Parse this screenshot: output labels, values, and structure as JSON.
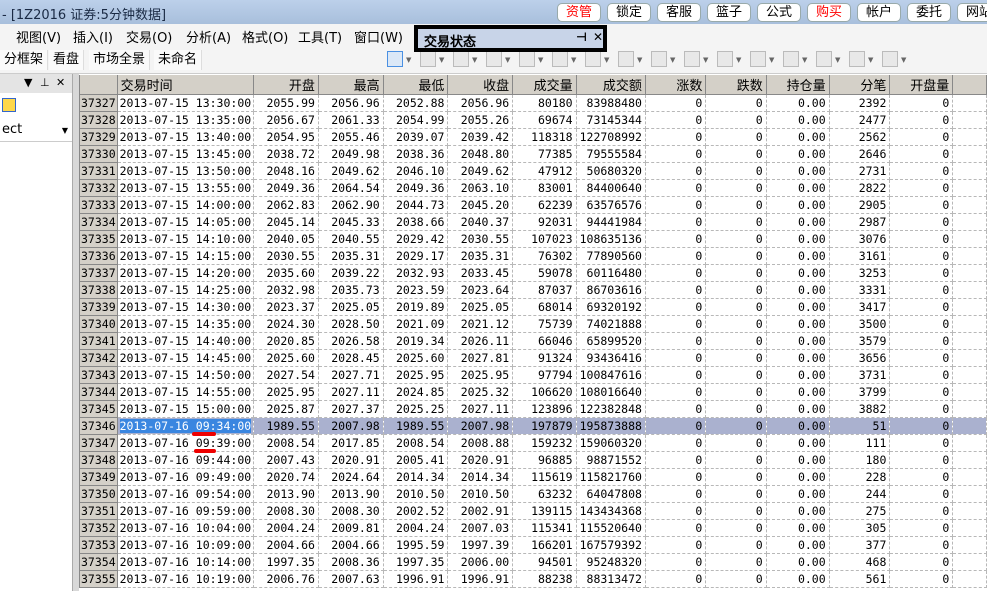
{
  "window": {
    "title": "- [1Z2016 证券:5分钟数据]"
  },
  "top_buttons": [
    {
      "label": "资管",
      "color": "#ff0000"
    },
    {
      "label": "锁定"
    },
    {
      "label": "客服"
    },
    {
      "label": "篮子"
    },
    {
      "label": "公式"
    },
    {
      "label": "购买",
      "color": "#ff0000"
    },
    {
      "label": "帐户"
    },
    {
      "label": "委托"
    },
    {
      "label": "网站"
    }
  ],
  "menu": [
    "视图(V)",
    "插入(I)",
    "交易(O)",
    "分析(A)",
    "格式(O)",
    "工具(T)",
    "窗口(W)"
  ],
  "tabs": [
    "分框架",
    "看盘",
    "市场全景",
    "未命名"
  ],
  "float_window": {
    "title": "交易状态"
  },
  "left_panel": {
    "select_value": "ect"
  },
  "table": {
    "headers": [
      "",
      "交易时间",
      "开盘",
      "最高",
      "最低",
      "收盘",
      "成交量",
      "成交额",
      "涨数",
      "跌数",
      "持仓量",
      "分笔",
      "开盘量"
    ],
    "selected_index": 19,
    "rows": [
      [
        "37327",
        "2013-07-15 13:30:00",
        "2055.99",
        "2056.96",
        "2052.88",
        "2056.96",
        "80180",
        "83988480",
        "0",
        "0",
        "0.00",
        "2392",
        "0"
      ],
      [
        "37328",
        "2013-07-15 13:35:00",
        "2056.67",
        "2061.33",
        "2054.99",
        "2055.26",
        "69674",
        "73145344",
        "0",
        "0",
        "0.00",
        "2477",
        "0"
      ],
      [
        "37329",
        "2013-07-15 13:40:00",
        "2054.95",
        "2055.46",
        "2039.07",
        "2039.42",
        "118318",
        "122708992",
        "0",
        "0",
        "0.00",
        "2562",
        "0"
      ],
      [
        "37330",
        "2013-07-15 13:45:00",
        "2038.72",
        "2049.98",
        "2038.36",
        "2048.80",
        "77385",
        "79555584",
        "0",
        "0",
        "0.00",
        "2646",
        "0"
      ],
      [
        "37331",
        "2013-07-15 13:50:00",
        "2048.16",
        "2049.62",
        "2046.10",
        "2049.62",
        "47912",
        "50680320",
        "0",
        "0",
        "0.00",
        "2731",
        "0"
      ],
      [
        "37332",
        "2013-07-15 13:55:00",
        "2049.36",
        "2064.54",
        "2049.36",
        "2063.10",
        "83001",
        "84400640",
        "0",
        "0",
        "0.00",
        "2822",
        "0"
      ],
      [
        "37333",
        "2013-07-15 14:00:00",
        "2062.83",
        "2062.90",
        "2044.73",
        "2045.20",
        "62239",
        "63576576",
        "0",
        "0",
        "0.00",
        "2905",
        "0"
      ],
      [
        "37334",
        "2013-07-15 14:05:00",
        "2045.14",
        "2045.33",
        "2038.66",
        "2040.37",
        "92031",
        "94441984",
        "0",
        "0",
        "0.00",
        "2987",
        "0"
      ],
      [
        "37335",
        "2013-07-15 14:10:00",
        "2040.05",
        "2040.55",
        "2029.42",
        "2030.55",
        "107023",
        "108635136",
        "0",
        "0",
        "0.00",
        "3076",
        "0"
      ],
      [
        "37336",
        "2013-07-15 14:15:00",
        "2030.55",
        "2035.31",
        "2029.17",
        "2035.31",
        "76302",
        "77890560",
        "0",
        "0",
        "0.00",
        "3161",
        "0"
      ],
      [
        "37337",
        "2013-07-15 14:20:00",
        "2035.60",
        "2039.22",
        "2032.93",
        "2033.45",
        "59078",
        "60116480",
        "0",
        "0",
        "0.00",
        "3253",
        "0"
      ],
      [
        "37338",
        "2013-07-15 14:25:00",
        "2032.98",
        "2035.73",
        "2023.59",
        "2023.64",
        "87037",
        "86703616",
        "0",
        "0",
        "0.00",
        "3331",
        "0"
      ],
      [
        "37339",
        "2013-07-15 14:30:00",
        "2023.37",
        "2025.05",
        "2019.89",
        "2025.05",
        "68014",
        "69320192",
        "0",
        "0",
        "0.00",
        "3417",
        "0"
      ],
      [
        "37340",
        "2013-07-15 14:35:00",
        "2024.30",
        "2028.50",
        "2021.09",
        "2021.12",
        "75739",
        "74021888",
        "0",
        "0",
        "0.00",
        "3500",
        "0"
      ],
      [
        "37341",
        "2013-07-15 14:40:00",
        "2020.85",
        "2026.58",
        "2019.34",
        "2026.11",
        "66046",
        "65899520",
        "0",
        "0",
        "0.00",
        "3579",
        "0"
      ],
      [
        "37342",
        "2013-07-15 14:45:00",
        "2025.60",
        "2028.45",
        "2025.60",
        "2027.81",
        "91324",
        "93436416",
        "0",
        "0",
        "0.00",
        "3656",
        "0"
      ],
      [
        "37343",
        "2013-07-15 14:50:00",
        "2027.54",
        "2027.71",
        "2025.95",
        "2025.95",
        "97794",
        "100847616",
        "0",
        "0",
        "0.00",
        "3731",
        "0"
      ],
      [
        "37344",
        "2013-07-15 14:55:00",
        "2025.95",
        "2027.11",
        "2024.85",
        "2025.32",
        "106620",
        "108016640",
        "0",
        "0",
        "0.00",
        "3799",
        "0"
      ],
      [
        "37345",
        "2013-07-15 15:00:00",
        "2025.87",
        "2027.37",
        "2025.25",
        "2027.11",
        "123896",
        "122382848",
        "0",
        "0",
        "0.00",
        "3882",
        "0"
      ],
      [
        "37346",
        "2013-07-16 09:34:00",
        "1989.55",
        "2007.98",
        "1989.55",
        "2007.98",
        "197879",
        "195873888",
        "0",
        "0",
        "0.00",
        "51",
        "0"
      ],
      [
        "37347",
        "2013-07-16 09:39:00",
        "2008.54",
        "2017.85",
        "2008.54",
        "2008.88",
        "159232",
        "159060320",
        "0",
        "0",
        "0.00",
        "111",
        "0"
      ],
      [
        "37348",
        "2013-07-16 09:44:00",
        "2007.43",
        "2020.91",
        "2005.41",
        "2020.91",
        "96885",
        "98871552",
        "0",
        "0",
        "0.00",
        "180",
        "0"
      ],
      [
        "37349",
        "2013-07-16 09:49:00",
        "2020.74",
        "2024.64",
        "2014.34",
        "2014.34",
        "115619",
        "115821760",
        "0",
        "0",
        "0.00",
        "228",
        "0"
      ],
      [
        "37350",
        "2013-07-16 09:54:00",
        "2013.90",
        "2013.90",
        "2010.50",
        "2010.50",
        "63232",
        "64047808",
        "0",
        "0",
        "0.00",
        "244",
        "0"
      ],
      [
        "37351",
        "2013-07-16 09:59:00",
        "2008.30",
        "2008.30",
        "2002.52",
        "2002.91",
        "139115",
        "143434368",
        "0",
        "0",
        "0.00",
        "275",
        "0"
      ],
      [
        "37352",
        "2013-07-16 10:04:00",
        "2004.24",
        "2009.81",
        "2004.24",
        "2007.03",
        "115341",
        "115520640",
        "0",
        "0",
        "0.00",
        "305",
        "0"
      ],
      [
        "37353",
        "2013-07-16 10:09:00",
        "2004.66",
        "2004.66",
        "1995.59",
        "1997.39",
        "166201",
        "167579392",
        "0",
        "0",
        "0.00",
        "377",
        "0"
      ],
      [
        "37354",
        "2013-07-16 10:14:00",
        "1997.35",
        "2008.36",
        "1997.35",
        "2006.00",
        "94501",
        "95248320",
        "0",
        "0",
        "0.00",
        "468",
        "0"
      ],
      [
        "37355",
        "2013-07-16 10:19:00",
        "2006.76",
        "2007.63",
        "1996.91",
        "1996.91",
        "88238",
        "88313472",
        "0",
        "0",
        "0.00",
        "561",
        "0"
      ]
    ]
  }
}
